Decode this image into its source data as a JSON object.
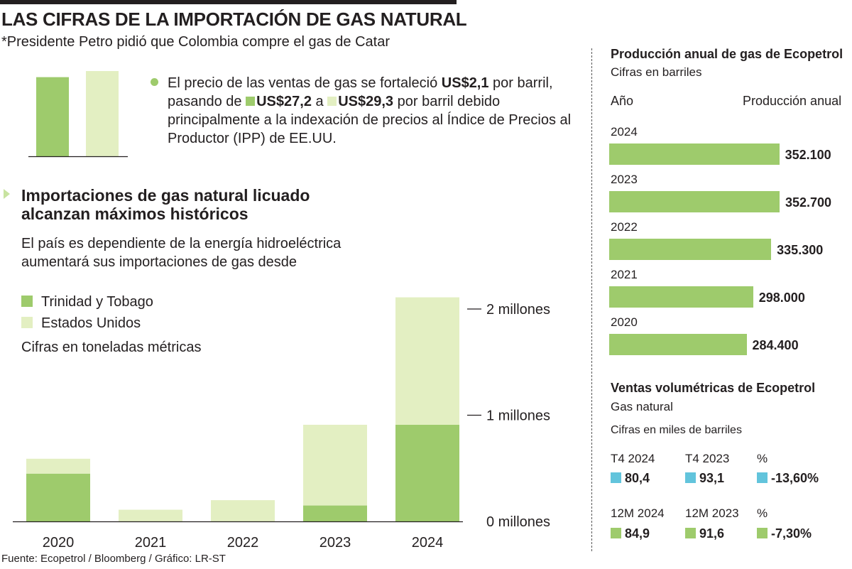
{
  "header": {
    "title": "LAS CIFRAS DE LA IMPORTACIÓN DE GAS NATURAL",
    "subtitle": "*Presidente Petro pidió que Colombia compre el gas de Catar"
  },
  "colors": {
    "dark_green": "#9ecb6c",
    "light_green": "#e3efc2",
    "cyan": "#62c4dc",
    "bullet": "#9ecb6c",
    "text": "#231f20"
  },
  "price_note": {
    "part1": "El precio de las ventas de gas se fortaleció ",
    "increase": "US$2,1",
    "part2": " por barril, pasando de ",
    "price_from": "US$27,2",
    "part3": " a ",
    "price_to": "US$29,3",
    "part4": " por barril debido principalmente a la indexación de precios al Índice de Precios al Productor (IPP) de EE.UU."
  },
  "imports_section": {
    "title": "Importaciones de gas natural licuado alcanzan máximos históricos",
    "description": "El país es dependiente de la energía hidroeléctrica aumentará sus importaciones de gas desde",
    "legend": [
      "Trinidad y Tobago",
      "Estados Unidos"
    ],
    "units": "Cifras en toneladas métricas"
  },
  "annual_production": {
    "title": "Producción anual de gas de Ecopetrol",
    "subtitle": "Cifras en barriles",
    "col_year": "Año",
    "col_value": "Producción anual"
  },
  "volumetric_sales": {
    "title": "Ventas volumétricas de Ecopetrol",
    "subtitle": "Gas natural",
    "units": "Cifras en miles de barriles",
    "rows": [
      {
        "headers": [
          "T4 2024",
          "T4 2023",
          "%"
        ],
        "values": [
          "80,4",
          "93,1",
          "-13,60%"
        ],
        "color": "#62c4dc"
      },
      {
        "headers": [
          "12M 2024",
          "12M 2023",
          "%"
        ],
        "values": [
          "84,9",
          "91,6",
          "-7,30%"
        ],
        "color": "#9ecb6c"
      }
    ]
  },
  "source": "Fuente: Ecopetrol / Bloomberg / Gráfico: LR-ST",
  "chart_data": [
    {
      "type": "bar",
      "categories": [
        "",
        ""
      ],
      "values": [
        27.2,
        29.3
      ],
      "colors": [
        "#9ecb6c",
        "#e3efc2"
      ],
      "title": "",
      "xlabel": "",
      "ylabel": ""
    },
    {
      "type": "bar",
      "stacked": true,
      "categories": [
        "2020",
        "2021",
        "2022",
        "2023",
        "2024"
      ],
      "series": [
        {
          "name": "Trinidad y Tobago",
          "values": [
            0.45,
            0.0,
            0.0,
            0.15,
            0.91
          ],
          "color": "#9ecb6c"
        },
        {
          "name": "Estados Unidos",
          "values": [
            0.14,
            0.11,
            0.2,
            0.76,
            1.2
          ],
          "color": "#e3efc2"
        }
      ],
      "y_ticks": [
        0,
        1,
        2
      ],
      "y_tick_labels": [
        "0 millones",
        "1 millones",
        "2 millones"
      ],
      "ylim": [
        0,
        2.15
      ],
      "title": "",
      "xlabel": "",
      "ylabel": ""
    },
    {
      "type": "bar",
      "orientation": "horizontal",
      "categories": [
        "2024",
        "2023",
        "2022",
        "2021",
        "2020"
      ],
      "values": [
        352100,
        352700,
        335300,
        298000,
        284400
      ],
      "labels": [
        "352.100",
        "352.700",
        "335.300",
        "298.000",
        "284.400"
      ],
      "color": "#9ecb6c",
      "title": "Producción anual de gas de Ecopetrol",
      "xlabel": "Producción anual",
      "ylabel": "Año"
    }
  ]
}
